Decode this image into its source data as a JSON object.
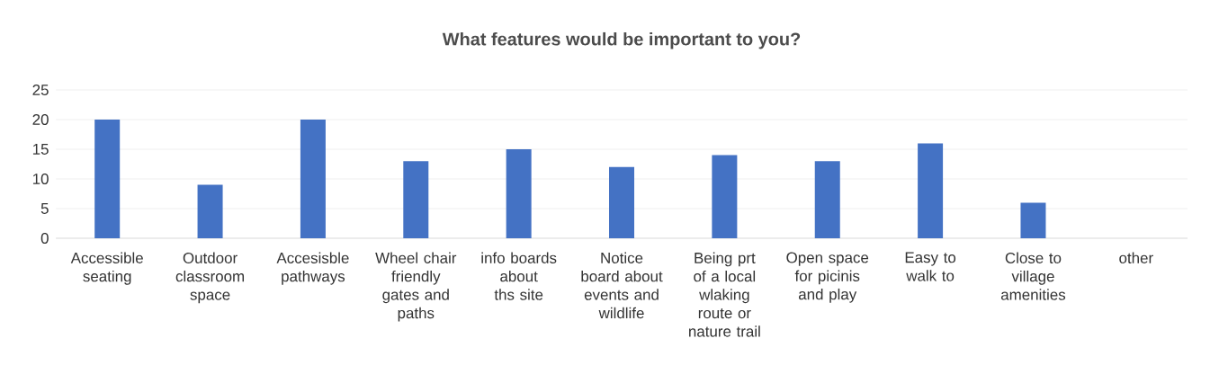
{
  "chart_data": {
    "type": "bar",
    "title": "What features would be important to you?",
    "categories": [
      "Accessible seating",
      "Outdoor classroom space",
      "Accesisble pathways",
      "Wheel chair friendly gates and paths",
      "info boards about ths site",
      "Notice board about events and wildlife",
      "Being prt of a local wlaking route or nature trail",
      "Open space for picinis and play",
      "Easy to walk to",
      "Close to village amenities",
      "other"
    ],
    "values": [
      20,
      9,
      20,
      13,
      15,
      12,
      14,
      13,
      16,
      6,
      0
    ],
    "color": "#4472c4",
    "ylim": [
      0,
      25
    ],
    "yticks": [
      0,
      5,
      10,
      15,
      20,
      25
    ],
    "grid": "y"
  }
}
